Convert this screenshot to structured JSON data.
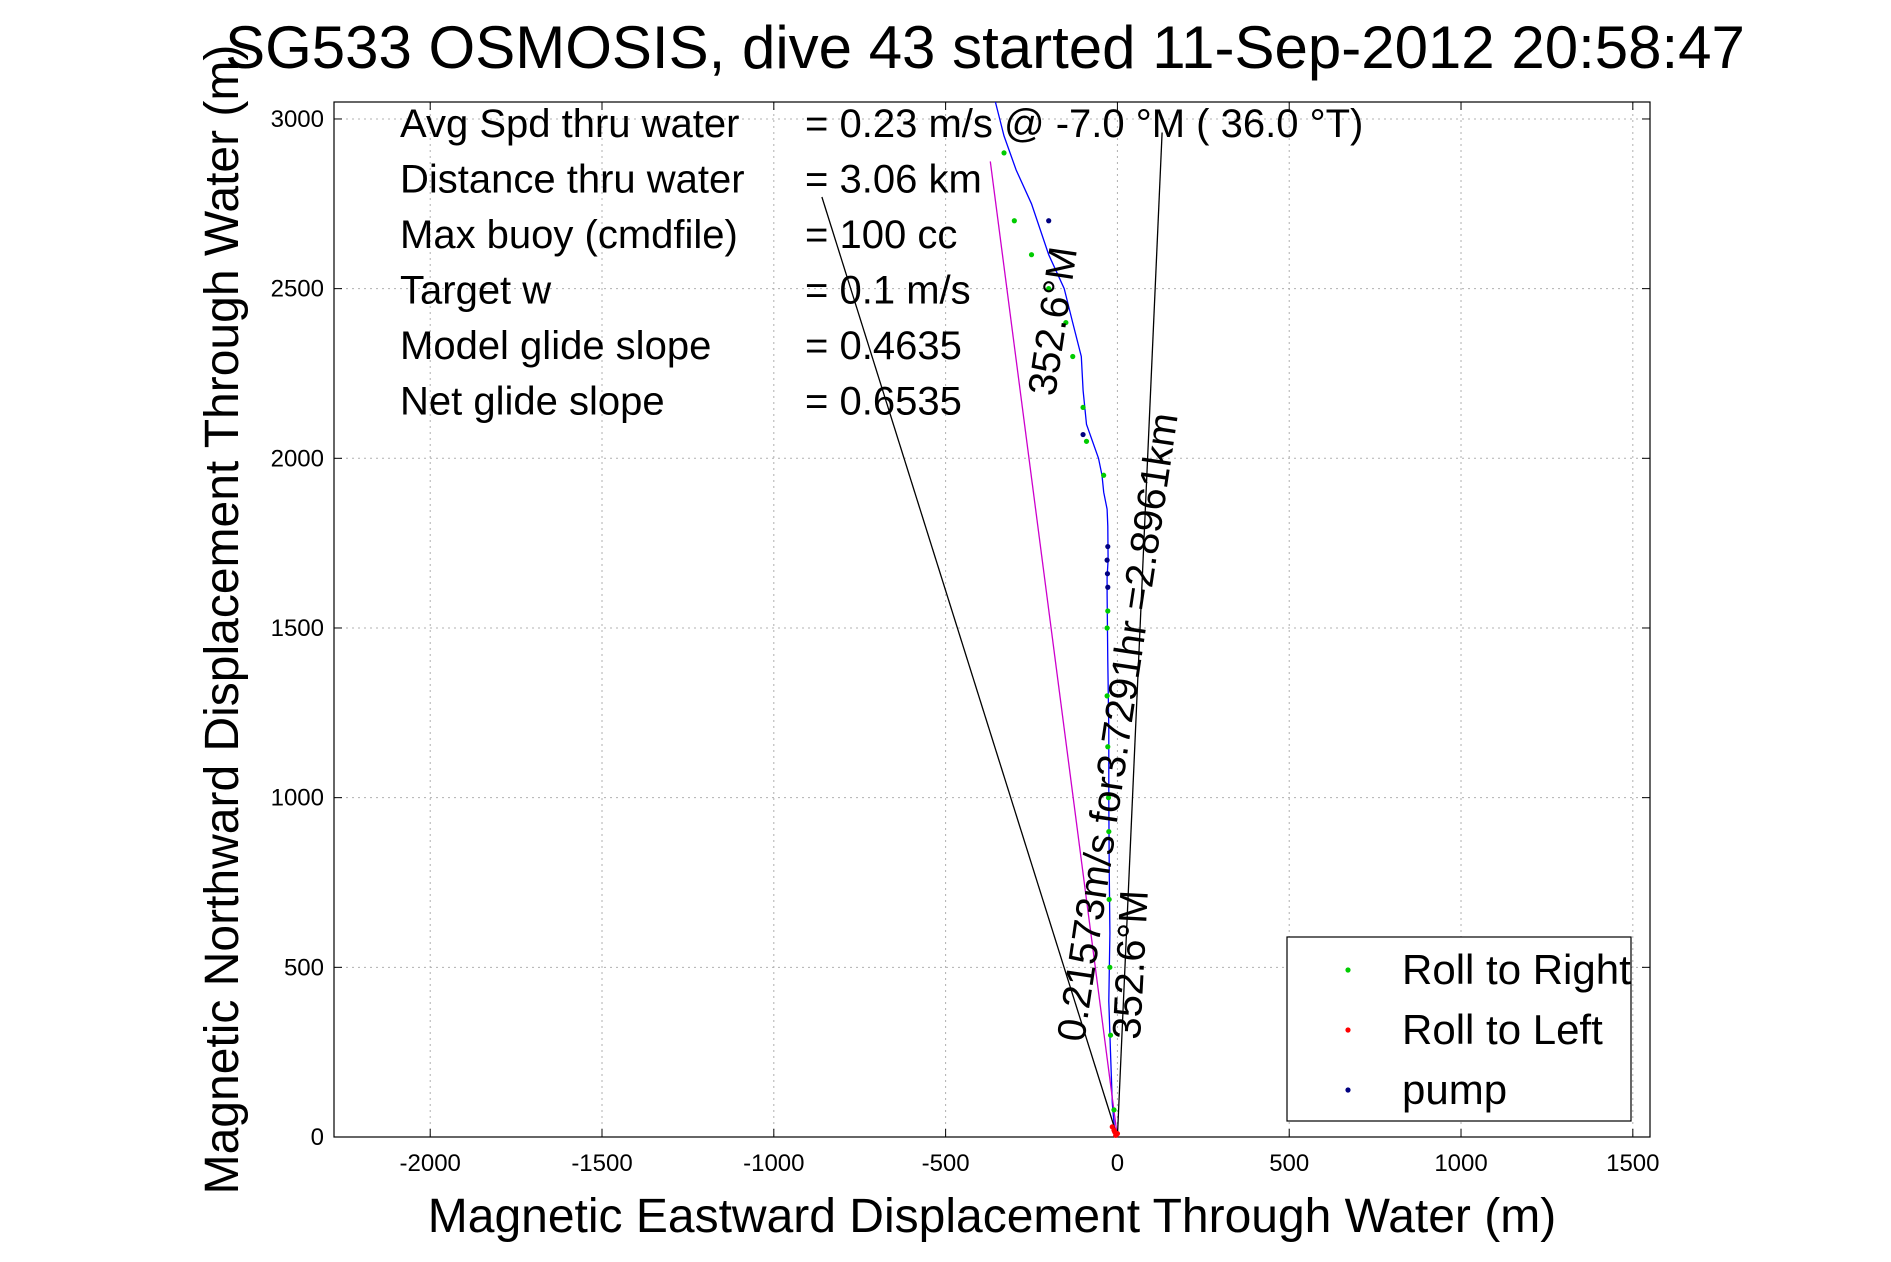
{
  "chart_data": {
    "type": "line",
    "title": "SG533 OSMOSIS, dive 43 started 11-Sep-2012 20:58:47",
    "xlabel": "Magnetic Eastward Displacement Through Water (m)",
    "ylabel": "Magnetic Northward Displacement Through Water (m)",
    "xlim": [
      -2280,
      1550
    ],
    "ylim": [
      0,
      3050
    ],
    "xticks": [
      -2000,
      -1500,
      -1000,
      -500,
      0,
      500,
      1000,
      1500
    ],
    "yticks": [
      0,
      500,
      1000,
      1500,
      2000,
      2500,
      3000
    ],
    "xtick_labels": [
      "-2000",
      "-1500",
      "-1000",
      "-500",
      "0",
      "500",
      "1000",
      "1500"
    ],
    "ytick_labels": [
      "0",
      "500",
      "1000",
      "1500",
      "2000",
      "2500",
      "3000"
    ],
    "grid": true,
    "legend_position": "bottom-right",
    "legend": [
      {
        "label": "Roll to Right",
        "color": "#00cc00"
      },
      {
        "label": "Roll to Left",
        "color": "#ff0000"
      },
      {
        "label": "pump",
        "color": "#000080"
      }
    ],
    "annotations": [
      {
        "label": "Avg Spd thru water",
        "value": "=  0.23 m/s @  -7.0 °M ( 36.0 °T)"
      },
      {
        "label": "Distance thru water",
        "value": "=  3.06 km"
      },
      {
        "label": "Max buoy (cmdfile)",
        "value": "= 100 cc"
      },
      {
        "label": "Target w",
        "value": "= 0.1 m/s"
      },
      {
        "label": "Model glide slope",
        "value": "= 0.4635"
      },
      {
        "label": "Net glide slope",
        "value": "= 0.6535"
      }
    ],
    "track_labels": {
      "speed_track": "0.21573m/s for3.7291hr =2.8961km",
      "heading_upper": "352.6°M",
      "heading_lower": "352.6°M"
    },
    "series": [
      {
        "name": "track",
        "color": "#0000ff",
        "x": [
          -5,
          -10,
          -15,
          -20,
          -25,
          -22,
          -24,
          -25,
          -25,
          -28,
          -30,
          -30,
          -27,
          -28,
          -30,
          -40,
          -45,
          -55,
          -90,
          -100,
          -105,
          -130,
          -155,
          -200,
          -250,
          -295,
          -330,
          -355
        ],
        "y": [
          0,
          40,
          100,
          250,
          400,
          600,
          800,
          1000,
          1200,
          1400,
          1600,
          1650,
          1700,
          1800,
          1850,
          1900,
          1950,
          2000,
          2100,
          2200,
          2300,
          2400,
          2500,
          2600,
          2750,
          2850,
          2950,
          3050
        ]
      },
      {
        "name": "speed vector",
        "color": "#cc00cc",
        "x": [
          0,
          -370
        ],
        "y": [
          0,
          2875
        ]
      },
      {
        "name": "heading wedge left",
        "color": "#000000",
        "x": [
          0,
          -860
        ],
        "y": [
          0,
          2770
        ]
      },
      {
        "name": "heading wedge right",
        "color": "#000000",
        "x": [
          0,
          130
        ],
        "y": [
          0,
          2960
        ]
      },
      {
        "name": "Roll to Right",
        "color": "#00cc00",
        "x": [
          -10,
          -20,
          -22,
          -24,
          -25,
          -26,
          -28,
          -30,
          -30,
          -28,
          -40,
          -90,
          -100,
          -130,
          -150,
          -200,
          -250,
          -300,
          -330
        ],
        "y": [
          80,
          300,
          500,
          700,
          900,
          1000,
          1150,
          1300,
          1500,
          1550,
          1950,
          2050,
          2150,
          2300,
          2400,
          2500,
          2600,
          2700,
          2900
        ]
      },
      {
        "name": "Roll to Left",
        "color": "#ff0000",
        "x": [
          -5,
          -10,
          -15,
          0,
          -8
        ],
        "y": [
          5,
          20,
          30,
          10,
          15
        ]
      },
      {
        "name": "pump",
        "color": "#000080",
        "x": [
          -28,
          -29,
          -30,
          -28,
          -100,
          -200
        ],
        "y": [
          1620,
          1660,
          1700,
          1740,
          2070,
          2700
        ]
      }
    ]
  }
}
